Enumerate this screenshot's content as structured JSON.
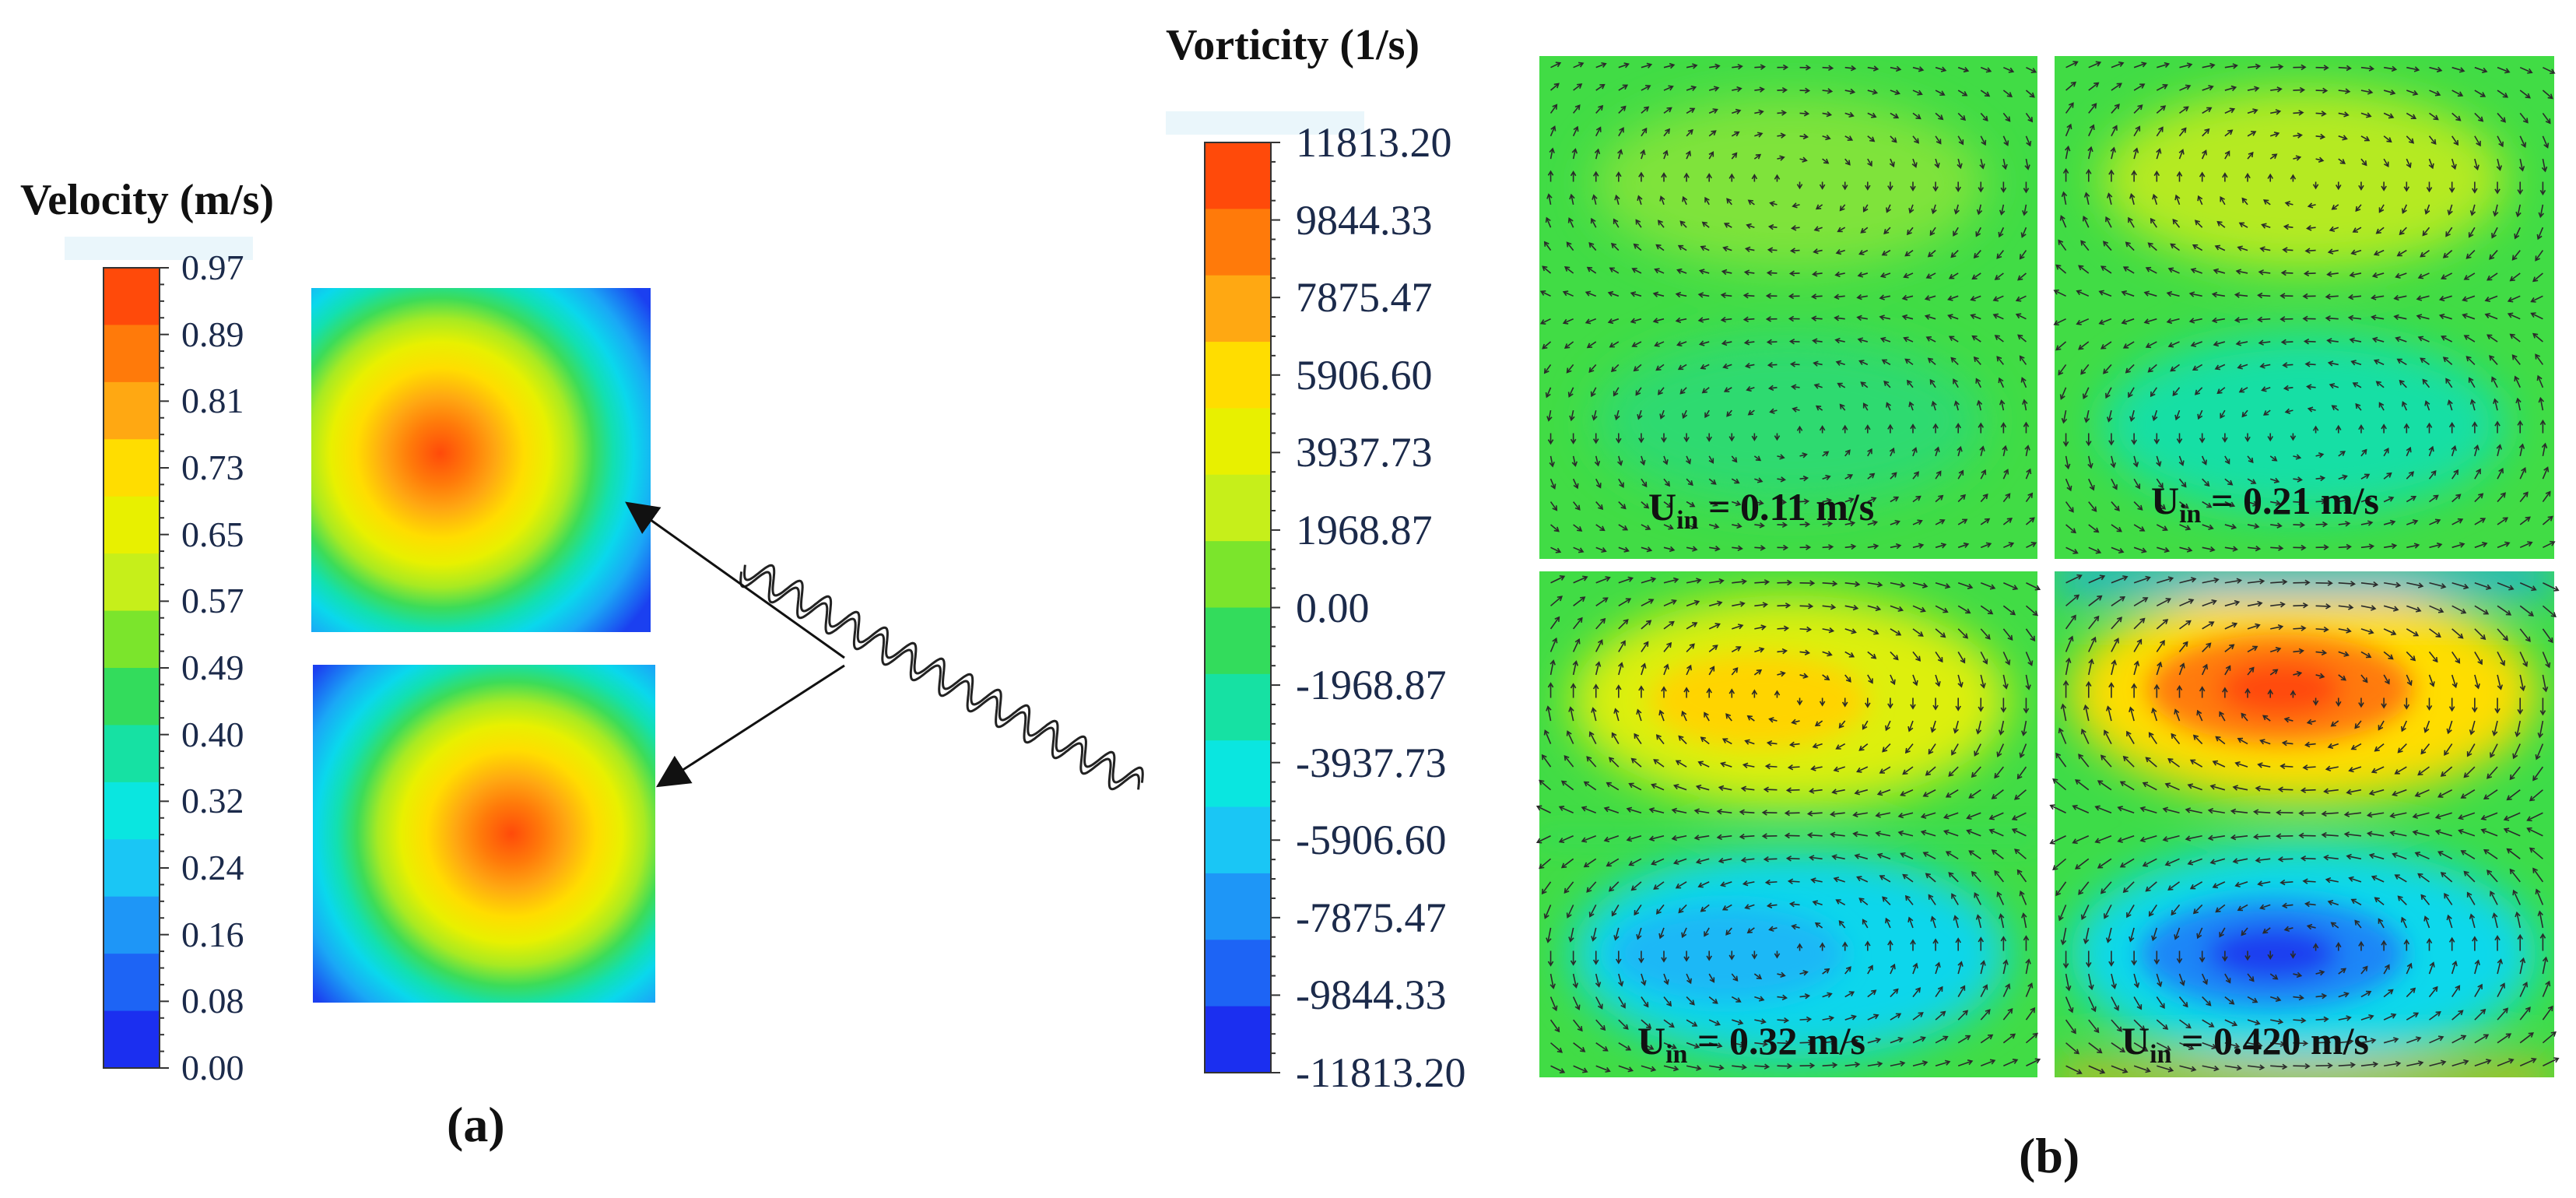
{
  "panel_a": {
    "colorbar_title": "Velocity (m/s)",
    "ticks": [
      "0.97",
      "0.89",
      "0.81",
      "0.73",
      "0.65",
      "0.57",
      "0.49",
      "0.40",
      "0.32",
      "0.24",
      "0.16",
      "0.08",
      "0.00"
    ],
    "colors": [
      "#ff4a0a",
      "#ff7a0a",
      "#ffa812",
      "#ffdd00",
      "#e8f000",
      "#c6ef1a",
      "#7be52c",
      "#33dc5c",
      "#16e1a3",
      "#0ae6e0",
      "#1ac6f5",
      "#1e96f7",
      "#1d64f5",
      "#1b2ff0"
    ],
    "label": "(a)"
  },
  "panel_b": {
    "colorbar_title": "Vorticity (1/s)",
    "ticks": [
      "11813.20",
      "9844.33",
      "7875.47",
      "5906.60",
      "3937.73",
      "1968.87",
      "0.00",
      "-1968.87",
      "-3937.73",
      "-5906.60",
      "-7875.47",
      "-9844.33",
      "-11813.20"
    ],
    "colors": [
      "#ff4a0a",
      "#ff7a0a",
      "#ffa812",
      "#ffdd00",
      "#e8f000",
      "#c6ef1a",
      "#7be52c",
      "#33dc5c",
      "#16e1a3",
      "#0ae6e0",
      "#1ac6f5",
      "#1e96f7",
      "#1d64f5",
      "#1b2ff0"
    ],
    "label": "(b)",
    "cases": [
      {
        "prefix": "U",
        "sub": "in",
        "value": " = 0.11 m/s"
      },
      {
        "prefix": "U",
        "sub": "in",
        "value": " = 0.21 m/s"
      },
      {
        "prefix": "U",
        "sub": "in",
        "value": " = 0.32 m/s"
      },
      {
        "prefix": "U",
        "sub": "in",
        "value": " = 0.420 m/s"
      }
    ]
  }
}
